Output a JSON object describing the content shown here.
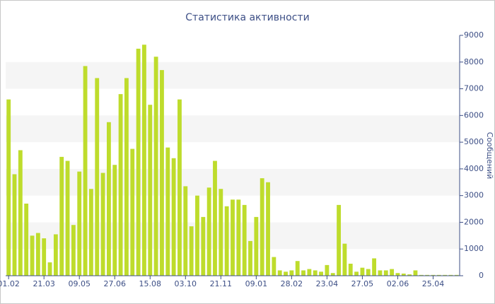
{
  "chart_data": {
    "type": "bar",
    "title": "Статистика активности",
    "y_label": "Сообщений",
    "categories": [
      "01.02",
      null,
      null,
      null,
      null,
      null,
      "21.03",
      null,
      null,
      null,
      null,
      null,
      "09.05",
      null,
      null,
      null,
      null,
      null,
      "27.06",
      null,
      null,
      null,
      null,
      null,
      "15.08",
      null,
      null,
      null,
      null,
      null,
      "03.10",
      null,
      null,
      null,
      null,
      null,
      "21.11",
      null,
      null,
      null,
      null,
      null,
      "09.01",
      null,
      null,
      null,
      null,
      null,
      "28.02",
      null,
      null,
      null,
      null,
      null,
      "23.04",
      null,
      null,
      null,
      null,
      null,
      "27.05",
      null,
      null,
      null,
      null,
      null,
      "02.06",
      null,
      null,
      null,
      null,
      null,
      "25.04",
      null,
      null,
      null,
      null
    ],
    "values": [
      6600,
      3800,
      4700,
      2700,
      1500,
      1600,
      1400,
      500,
      1550,
      4450,
      4300,
      1900,
      3900,
      7850,
      3250,
      7400,
      3850,
      5750,
      4150,
      6800,
      7400,
      4750,
      8500,
      8650,
      6400,
      8200,
      7700,
      4800,
      4400,
      6600,
      3350,
      1850,
      3000,
      2200,
      3300,
      4300,
      3250,
      2600,
      2850,
      2850,
      2650,
      1300,
      2200,
      3650,
      3500,
      700,
      200,
      150,
      200,
      550,
      200,
      250,
      200,
      150,
      400,
      100,
      2650,
      1200,
      450,
      150,
      300,
      250,
      650,
      200,
      200,
      250,
      100,
      80,
      50,
      200,
      30,
      30,
      30,
      30,
      30,
      30,
      30
    ],
    "color": "#bedc2c",
    "ylim": [
      0,
      9000
    ],
    "yticks": [
      0,
      1000,
      2000,
      3000,
      4000,
      5000,
      6000,
      7000,
      8000,
      9000
    ],
    "alternate_bands": true
  }
}
